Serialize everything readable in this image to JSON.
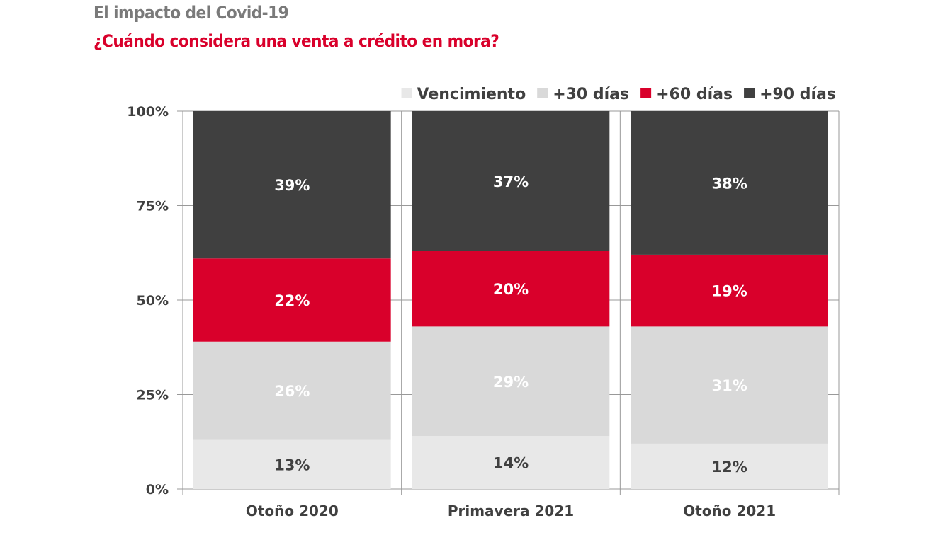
{
  "title": "El impacto del Covid-19",
  "subtitle": "¿Cuándo considera una venta a crédito en mora?",
  "chart_data": {
    "type": "bar",
    "stacked": true,
    "categories": [
      "Otoño 2020",
      "Primavera 2021",
      "Otoño 2021"
    ],
    "series": [
      {
        "name": "Vencimiento",
        "values": [
          13,
          14,
          12
        ],
        "color": "#e8e8e8",
        "label_color": "#404040"
      },
      {
        "name": "+30 días",
        "values": [
          26,
          29,
          31
        ],
        "color": "#d9d9d9",
        "label_color": "#ffffff"
      },
      {
        "name": "+60 días",
        "values": [
          22,
          20,
          19
        ],
        "color": "#d9002b",
        "label_color": "#ffffff"
      },
      {
        "name": "+90 días",
        "values": [
          39,
          37,
          38
        ],
        "color": "#404040",
        "label_color": "#ffffff"
      }
    ],
    "yticks": [
      "0%",
      "25%",
      "50%",
      "75%",
      "100%"
    ],
    "ylim": [
      0,
      100
    ],
    "grid": true,
    "legend": "top-right",
    "xlabel": "",
    "ylabel": ""
  }
}
